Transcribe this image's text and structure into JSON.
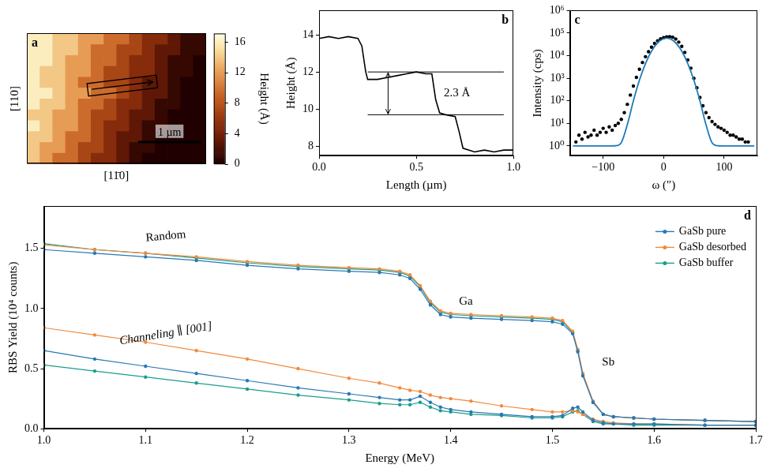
{
  "chart_data": [
    {
      "type": "heatmap",
      "panel_label": "a",
      "x_label": "[11̄0]",
      "y_label": "[110]",
      "xlim": [
        0,
        2.85
      ],
      "ylim": [
        0,
        2.5
      ],
      "tick_labels": false,
      "cells": [
        [
          16,
          16,
          14,
          14,
          12,
          12,
          9.5,
          9.5,
          7,
          5,
          5,
          3,
          1,
          1
        ],
        [
          16,
          16,
          14,
          14,
          12,
          9.5,
          9.5,
          7,
          7,
          5,
          3,
          3,
          1,
          1
        ],
        [
          16,
          16,
          14,
          12,
          12,
          9.5,
          9.5,
          7,
          5,
          5,
          3,
          1,
          1,
          0
        ],
        [
          16,
          14,
          14,
          12,
          12,
          9.5,
          7,
          7,
          5,
          5,
          3,
          1,
          1,
          0
        ],
        [
          16,
          14,
          14,
          12,
          9.5,
          9.5,
          7,
          7,
          5,
          3,
          3,
          1,
          0,
          0
        ],
        [
          16,
          16,
          14,
          12,
          12,
          9.5,
          9.5,
          7,
          5,
          3,
          3,
          1,
          0,
          0
        ],
        [
          16,
          14,
          14,
          12,
          9.5,
          9.5,
          7,
          5,
          5,
          3,
          1,
          1,
          0,
          0
        ],
        [
          14,
          14,
          12,
          12,
          9.5,
          7,
          7,
          5,
          3,
          3,
          1,
          0,
          0,
          0
        ],
        [
          16,
          14,
          12,
          12,
          9.5,
          7,
          5,
          5,
          3,
          1,
          1,
          0,
          0,
          0
        ],
        [
          14,
          14,
          12,
          9.5,
          9.5,
          7,
          5,
          3,
          3,
          1,
          0,
          0,
          0,
          0
        ],
        [
          14,
          12,
          12,
          9.5,
          7,
          7,
          5,
          3,
          1,
          1,
          0,
          0,
          0,
          0
        ],
        [
          14,
          12,
          9.5,
          9.5,
          7,
          5,
          5,
          3,
          1,
          0,
          0,
          0,
          0,
          0
        ]
      ],
      "colorbar": {
        "label": "Height (Å)",
        "range": [
          0,
          17.1
        ],
        "ticks": [
          0,
          4,
          8,
          12,
          16
        ]
      },
      "scale_bar": {
        "length": 1,
        "label": "1 µm"
      }
    },
    {
      "type": "line",
      "panel_label": "b",
      "x_label": "Length (µm)",
      "y_label": "Height (Å)",
      "color": "#000000",
      "line_style": "solid",
      "grid": false,
      "xlim": [
        0,
        1
      ],
      "xticks": [
        {
          "value": 0,
          "label": "0.0"
        },
        0.5,
        {
          "value": 1,
          "label": "1.0"
        }
      ],
      "ylim": [
        7.5,
        15.3
      ],
      "yticks": [
        8,
        10,
        12,
        14
      ],
      "x": [
        0,
        0.05,
        0.1,
        0.15,
        0.2,
        0.22,
        0.24,
        0.25,
        0.3,
        0.35,
        0.4,
        0.45,
        0.5,
        0.55,
        0.58,
        0.6,
        0.62,
        0.65,
        0.7,
        0.72,
        0.74,
        0.8,
        0.85,
        0.9,
        0.95,
        1.0
      ],
      "values": [
        13.8,
        13.9,
        13.8,
        13.9,
        13.8,
        13.4,
        12.0,
        11.6,
        11.6,
        11.7,
        11.8,
        11.9,
        12.0,
        11.9,
        11.9,
        10.5,
        9.8,
        9.7,
        9.6,
        8.8,
        7.9,
        7.7,
        7.8,
        7.7,
        7.8,
        7.8
      ],
      "reference_lines": [
        {
          "y": 12.0,
          "x": [
            0.25,
            0.95
          ]
        },
        {
          "y": 9.7,
          "x": [
            0.25,
            0.95
          ]
        }
      ],
      "annotation": "2.3 Å"
    },
    {
      "type": "scatter",
      "panel_label": "c",
      "x_label": "ω (″)",
      "y_label": "Intensity (cps)",
      "log": "y",
      "grid": false,
      "xlim": [
        -155,
        155
      ],
      "xticks": [
        {
          "value": -100,
          "label": "−100"
        },
        0,
        100
      ],
      "ylim": [
        0.37,
        1000000
      ],
      "yticks": [
        {
          "value": 1,
          "label": "10⁰"
        },
        {
          "value": 10,
          "label": "10¹"
        },
        {
          "value": 100,
          "label": "10²"
        },
        {
          "value": 1000,
          "label": "10³"
        },
        {
          "value": 10000,
          "label": "10⁴"
        },
        {
          "value": 100000,
          "label": "10⁵"
        },
        {
          "value": 1000000,
          "label": "10⁶"
        }
      ],
      "series": [
        {
          "type": "scatter",
          "marker": "o",
          "color": "#000000",
          "x": [
            -145,
            -140,
            -135,
            -130,
            -125,
            -120,
            -115,
            -110,
            -105,
            -100,
            -95,
            -90,
            -85,
            -80,
            -75,
            -70,
            -65,
            -60,
            -55,
            -50,
            -45,
            -40,
            -35,
            -30,
            -25,
            -20,
            -15,
            -10,
            -5,
            0,
            5,
            10,
            15,
            20,
            25,
            30,
            35,
            40,
            45,
            50,
            55,
            60,
            65,
            70,
            75,
            80,
            85,
            90,
            95,
            100,
            105,
            110,
            115,
            120,
            125,
            130,
            135,
            140
          ],
          "values": [
            1.5,
            3,
            2,
            4,
            2.5,
            3,
            5,
            3,
            4,
            6,
            4,
            7,
            5,
            8,
            10,
            15,
            30,
            70,
            180,
            450,
            1100,
            2500,
            5000,
            9000,
            15000,
            24000,
            35000,
            46000,
            56000,
            63000,
            68000,
            70000,
            66000,
            55000,
            40000,
            26000,
            14000,
            6500,
            2800,
            1000,
            380,
            140,
            60,
            30,
            18,
            12,
            9,
            7,
            6,
            5,
            4,
            3,
            3,
            2.5,
            2,
            2,
            1.5,
            1.5
          ]
        },
        {
          "type": "line",
          "line_style": "solid",
          "color": "#1f7ab8",
          "x": [
            -150,
            -120,
            -100,
            -90,
            -80,
            -70,
            -60,
            -50,
            -40,
            -30,
            -20,
            -10,
            0,
            5,
            10,
            20,
            30,
            40,
            50,
            60,
            70,
            80,
            90,
            100,
            120,
            150
          ],
          "values": [
            1,
            1,
            1,
            1,
            1.01,
            1.4,
            8.8,
            100,
            822,
            4460,
            16000,
            37200,
            56900,
            60000,
            56900,
            37200,
            16000,
            4460,
            822,
            100,
            8.8,
            1.4,
            1.01,
            1,
            1,
            1
          ]
        }
      ]
    },
    {
      "type": "line",
      "panel_label": "d",
      "x_label": "Energy (MeV)",
      "y_label": "RBS Yield (10⁴ counts)",
      "grid": false,
      "legend": "upper right",
      "marker": "o",
      "xlim": [
        1,
        1.7
      ],
      "xticks": [
        {
          "value": 1,
          "label": "1.0"
        },
        1.1,
        1.2,
        1.3,
        1.4,
        1.5,
        1.6,
        1.7
      ],
      "ylim": [
        0,
        1.85
      ],
      "yticks": [
        {
          "value": 0,
          "label": "0.0"
        },
        0.5,
        {
          "value": 1,
          "label": "1.0"
        },
        1.5
      ],
      "annotations": [
        "Random",
        "Channeling ∥ [001]",
        "Ga",
        "Sb"
      ],
      "x": [
        1.0,
        1.05,
        1.1,
        1.15,
        1.2,
        1.25,
        1.3,
        1.33,
        1.35,
        1.36,
        1.37,
        1.38,
        1.39,
        1.4,
        1.42,
        1.45,
        1.48,
        1.5,
        1.51,
        1.52,
        1.525,
        1.53,
        1.54,
        1.55,
        1.56,
        1.58,
        1.6,
        1.65,
        1.7
      ],
      "series": [
        {
          "name": "GaSb pure",
          "color": "#2878b5",
          "random": [
            1.49,
            1.46,
            1.43,
            1.4,
            1.36,
            1.33,
            1.31,
            1.3,
            1.28,
            1.25,
            1.16,
            1.03,
            0.95,
            0.93,
            0.92,
            0.91,
            0.9,
            0.89,
            0.87,
            0.79,
            0.64,
            0.44,
            0.22,
            0.12,
            0.1,
            0.09,
            0.08,
            0.07,
            0.06
          ],
          "channeling": [
            0.65,
            0.58,
            0.52,
            0.46,
            0.4,
            0.34,
            0.29,
            0.26,
            0.24,
            0.24,
            0.27,
            0.22,
            0.18,
            0.16,
            0.14,
            0.12,
            0.1,
            0.1,
            0.11,
            0.17,
            0.18,
            0.14,
            0.07,
            0.05,
            0.04,
            0.04,
            0.04,
            0.03,
            0.03
          ]
        },
        {
          "name": "GaSb desorbed",
          "color": "#f28a3c",
          "random": [
            1.53,
            1.49,
            1.46,
            1.43,
            1.39,
            1.36,
            1.34,
            1.33,
            1.31,
            1.28,
            1.19,
            1.06,
            0.98,
            0.96,
            0.95,
            0.94,
            0.93,
            0.92,
            0.9,
            0.81,
            0.66,
            0.46,
            0.23,
            0.12,
            0.1,
            0.09,
            0.08,
            0.07,
            0.06
          ],
          "channeling": [
            0.84,
            0.78,
            0.72,
            0.65,
            0.58,
            0.5,
            0.42,
            0.38,
            0.34,
            0.32,
            0.31,
            0.28,
            0.26,
            0.25,
            0.23,
            0.19,
            0.16,
            0.14,
            0.14,
            0.15,
            0.14,
            0.12,
            0.08,
            0.06,
            0.05,
            0.04,
            0.04,
            0.03,
            0.03
          ]
        },
        {
          "name": "GaSb buffer",
          "color": "#1a9e8c",
          "random": [
            1.54,
            1.49,
            1.46,
            1.42,
            1.38,
            1.35,
            1.33,
            1.32,
            1.3,
            1.27,
            1.18,
            1.05,
            0.97,
            0.95,
            0.94,
            0.93,
            0.92,
            0.91,
            0.89,
            0.8,
            0.65,
            0.45,
            0.22,
            0.12,
            0.1,
            0.09,
            0.08,
            0.07,
            0.06
          ],
          "channeling": [
            0.53,
            0.48,
            0.43,
            0.38,
            0.33,
            0.28,
            0.24,
            0.21,
            0.2,
            0.2,
            0.22,
            0.18,
            0.15,
            0.14,
            0.12,
            0.11,
            0.09,
            0.09,
            0.1,
            0.14,
            0.15,
            0.12,
            0.06,
            0.04,
            0.04,
            0.03,
            0.03,
            0.03,
            0.03
          ]
        }
      ]
    }
  ]
}
